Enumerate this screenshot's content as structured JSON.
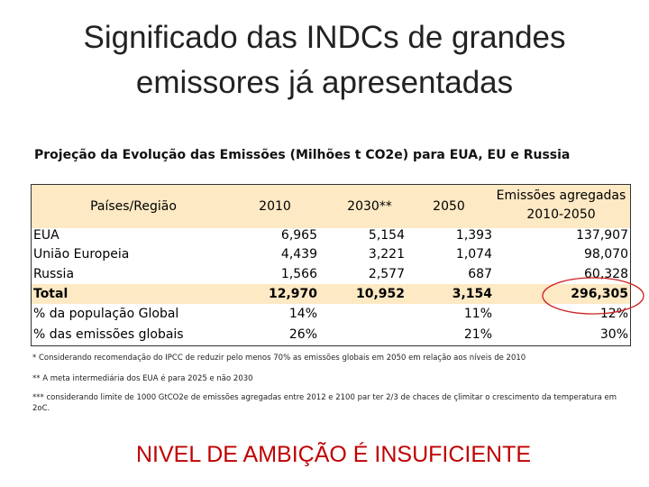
{
  "header": {
    "title_lines": [
      "Significado das INDCs de grandes",
      "emissores já apresentadas"
    ]
  },
  "subtitle": "Projeção da Evolução das Emissões (Milhões t CO2e) para EUA, EU e Russia",
  "table": {
    "columns": [
      "Países/Região",
      "2010",
      "2030**",
      "2050",
      "Emissões agregadas 2010-2050"
    ],
    "rows": [
      {
        "label": "EUA",
        "cells": [
          "6,965",
          "5,154",
          "1,393",
          "137,907"
        ]
      },
      {
        "label": "União Europeia",
        "cells": [
          "4,439",
          "3,221",
          "1,074",
          "98,070"
        ]
      },
      {
        "label": "Russia",
        "cells": [
          "1,566",
          "2,577",
          "687",
          "60,328"
        ]
      },
      {
        "label": "Total",
        "cells": [
          "12,970",
          "10,952",
          "3,154",
          "296,305"
        ]
      },
      {
        "label": "% da população Global",
        "cells": [
          "14%",
          null,
          "11%",
          "12%"
        ]
      },
      {
        "label": "% das emissões globais",
        "cells": [
          "26%",
          null,
          "21%",
          "30%"
        ]
      }
    ]
  },
  "footnotes": [
    "* Considerando recomendação do IPCC de reduzir pelo menos 70% as emissões globais em 2050 em relação aos níveis de 2010",
    "** A meta intermediária dos EUA é para 2025 e não 2030",
    "*** considerando limite de 1000 GtCO2e de emissões agregadas entre 2012 e 2100 par ter 2/3 de chaces de çlimitar o crescimento da temperatura em 2oC."
  ],
  "conclusion": "NIVEL DE AMBIÇÃO É INSUFICIENTE"
}
